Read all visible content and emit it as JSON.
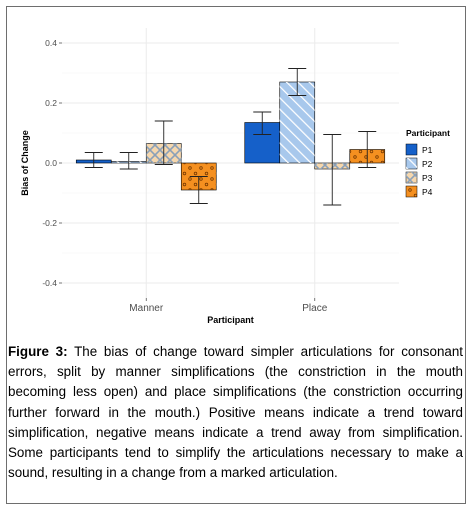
{
  "chart_data": {
    "type": "bar",
    "xlabel": "Participant",
    "ylabel": "Bias of Change",
    "categories": [
      "Manner",
      "Place"
    ],
    "ylim": [
      -0.45,
      0.45
    ],
    "yticks": [
      -0.4,
      -0.2,
      0.0,
      0.2,
      0.4
    ],
    "ytick_labels": [
      "-0.4",
      "-0.2",
      "0.0",
      "0.2",
      "0.4"
    ],
    "grid": true,
    "legend": {
      "title": "Participant",
      "position": "right"
    },
    "series": [
      {
        "name": "P1",
        "color": "#1560c9",
        "pattern": "solid",
        "values": [
          0.01,
          0.135
        ],
        "err_low": [
          -0.015,
          0.095
        ],
        "err_high": [
          0.035,
          0.17
        ]
      },
      {
        "name": "P2",
        "color": "#a8c8ec",
        "pattern": "stripe",
        "values": [
          0.005,
          0.27
        ],
        "err_low": [
          -0.02,
          0.225
        ],
        "err_high": [
          0.035,
          0.315
        ]
      },
      {
        "name": "P3",
        "color": "#f5d7ae",
        "pattern": "crosshatch",
        "values": [
          0.065,
          -0.02
        ],
        "err_low": [
          -0.005,
          -0.14
        ],
        "err_high": [
          0.14,
          0.095
        ]
      },
      {
        "name": "P4",
        "color": "#f59020",
        "pattern": "dots",
        "values": [
          -0.09,
          0.045
        ],
        "err_low": [
          -0.135,
          -0.015
        ],
        "err_high": [
          -0.045,
          0.105
        ]
      }
    ]
  },
  "caption": {
    "label": "Figure 3:",
    "text": " The bias of change toward simpler articulations for consonant errors, split by manner simplifications (the constriction in the mouth becoming less open) and place simplifications (the constriction occurring further forward in the mouth.) Positive means indicate a trend toward simplification, negative means indicate a trend away from simplification. Some participants tend to simplify the articulations necessary to make a sound, resulting in a change from a marked articulation."
  }
}
